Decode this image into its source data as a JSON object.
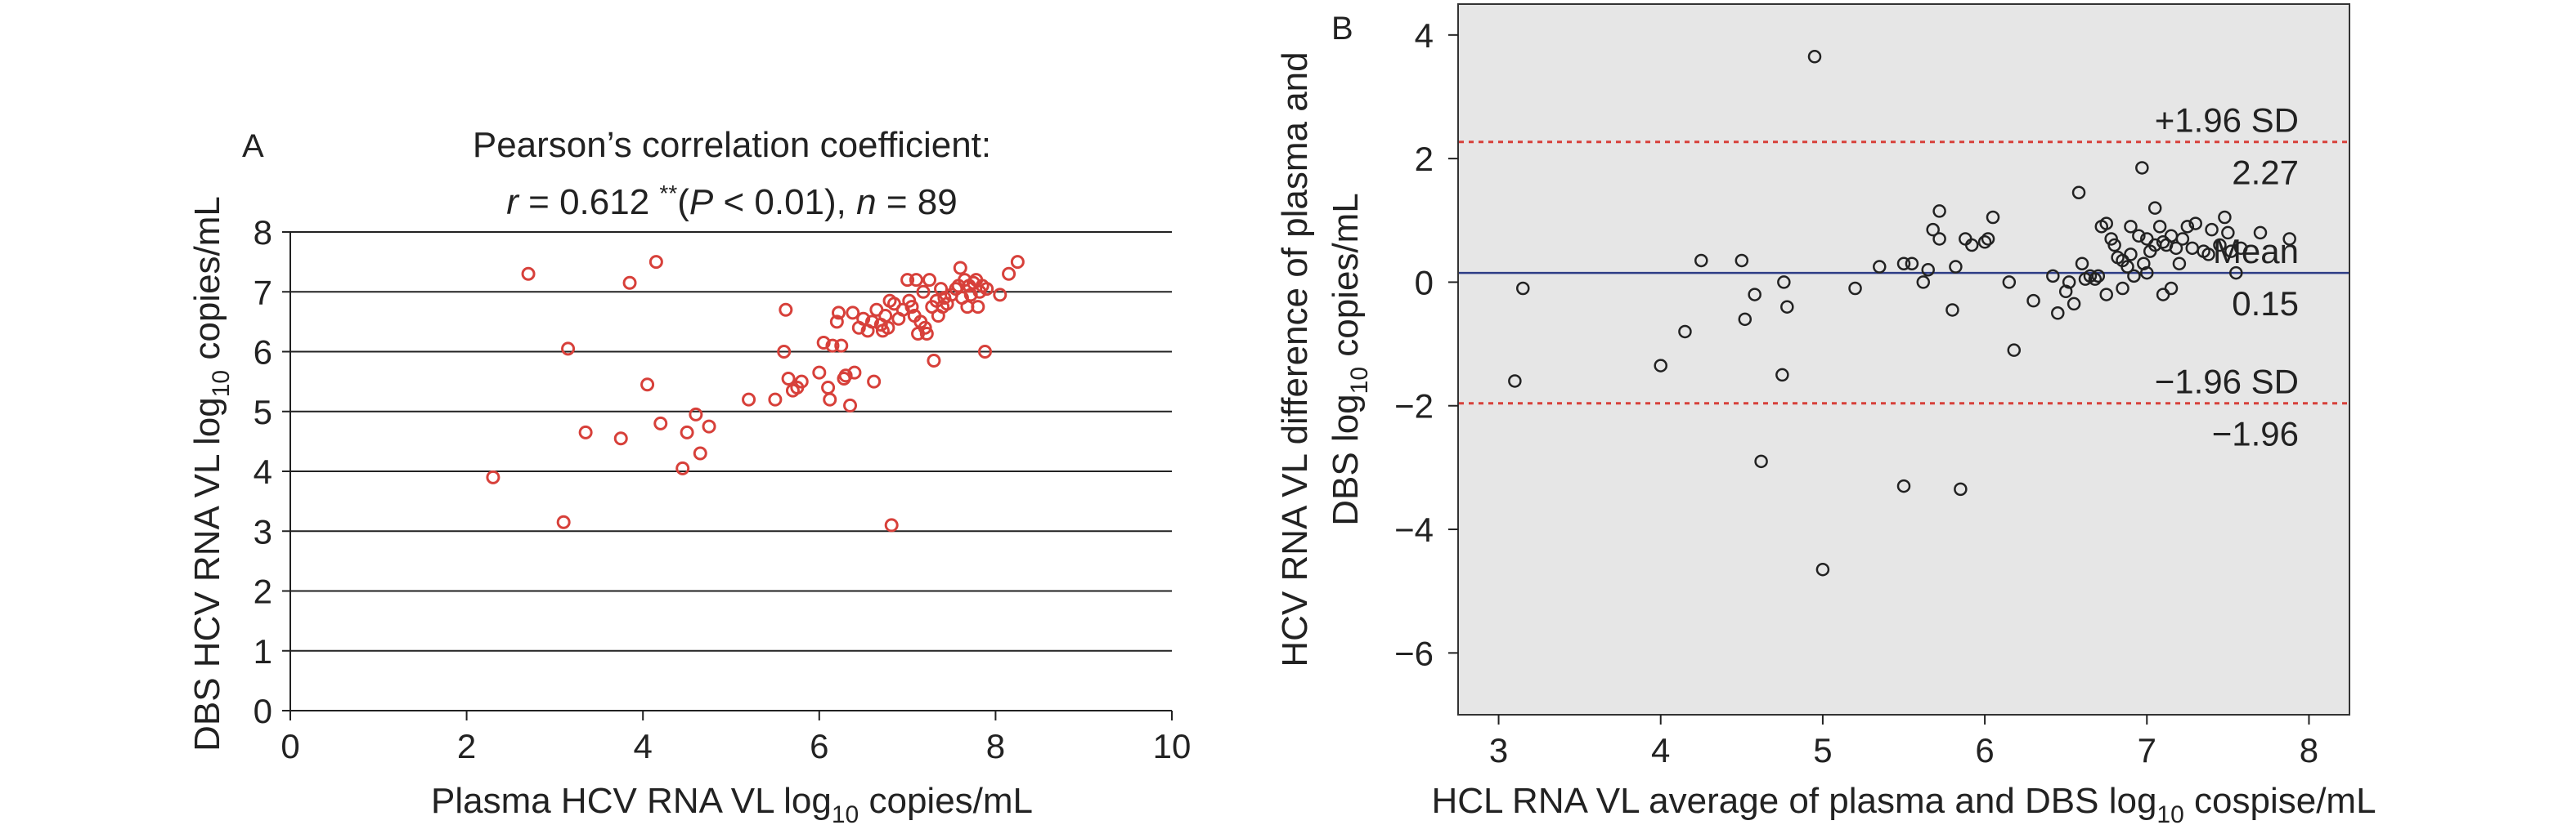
{
  "chart_data": [
    {
      "panel": "A",
      "type": "scatter",
      "title_line1": "Pearson’s correlation coefficient:",
      "title_line2": {
        "r_symbol": "r",
        "r_value": " = 0.612 ",
        "stars": "**",
        "p_open": "(",
        "p_symbol": "P",
        "p_rest": " < 0.01), ",
        "n_symbol": "n",
        "n_value": " = 89"
      },
      "xlabel": {
        "main": "Plasma HCV RNA VL log",
        "sub": "10",
        "tail": " copies/mL"
      },
      "ylabel": {
        "main": "DBS HCV RNA VL log",
        "sub": "10",
        "tail": " copies/mL"
      },
      "xlim": [
        0,
        10
      ],
      "ylim": [
        0,
        8
      ],
      "xticks": [
        "0",
        "2",
        "4",
        "6",
        "8",
        "10"
      ],
      "yticks": [
        "0",
        "1",
        "2",
        "3",
        "4",
        "5",
        "6",
        "7",
        "8"
      ],
      "grid": "horizontal",
      "point_color": "#d7403a",
      "points": [
        [
          2.3,
          3.9
        ],
        [
          2.7,
          7.3
        ],
        [
          3.1,
          3.15
        ],
        [
          3.15,
          6.05
        ],
        [
          3.35,
          4.65
        ],
        [
          3.75,
          4.55
        ],
        [
          3.85,
          7.15
        ],
        [
          4.05,
          5.45
        ],
        [
          4.15,
          7.5
        ],
        [
          4.2,
          4.8
        ],
        [
          4.45,
          4.05
        ],
        [
          4.5,
          4.65
        ],
        [
          4.6,
          4.95
        ],
        [
          4.65,
          4.3
        ],
        [
          4.75,
          4.75
        ],
        [
          5.2,
          5.2
        ],
        [
          5.5,
          5.2
        ],
        [
          5.6,
          6.0
        ],
        [
          5.62,
          6.7
        ],
        [
          5.65,
          5.55
        ],
        [
          5.7,
          5.35
        ],
        [
          5.75,
          5.4
        ],
        [
          5.8,
          5.5
        ],
        [
          6.0,
          5.65
        ],
        [
          6.05,
          6.15
        ],
        [
          6.1,
          5.4
        ],
        [
          6.12,
          5.2
        ],
        [
          6.15,
          6.1
        ],
        [
          6.2,
          6.5
        ],
        [
          6.22,
          6.65
        ],
        [
          6.25,
          6.1
        ],
        [
          6.28,
          5.55
        ],
        [
          6.3,
          5.6
        ],
        [
          6.35,
          5.1
        ],
        [
          6.38,
          6.65
        ],
        [
          6.4,
          5.65
        ],
        [
          6.45,
          6.4
        ],
        [
          6.5,
          6.55
        ],
        [
          6.55,
          6.35
        ],
        [
          6.6,
          6.5
        ],
        [
          6.62,
          5.5
        ],
        [
          6.65,
          6.7
        ],
        [
          6.7,
          6.45
        ],
        [
          6.75,
          6.6
        ],
        [
          6.78,
          6.4
        ],
        [
          6.8,
          6.85
        ],
        [
          6.82,
          3.1
        ],
        [
          6.85,
          6.8
        ],
        [
          6.9,
          6.55
        ],
        [
          6.95,
          6.7
        ],
        [
          7.0,
          7.2
        ],
        [
          7.02,
          6.85
        ],
        [
          7.05,
          6.75
        ],
        [
          7.08,
          6.6
        ],
        [
          7.1,
          7.2
        ],
        [
          7.12,
          6.3
        ],
        [
          7.15,
          6.5
        ],
        [
          7.18,
          7.0
        ],
        [
          7.2,
          6.4
        ],
        [
          7.22,
          6.3
        ],
        [
          7.25,
          7.2
        ],
        [
          7.28,
          6.75
        ],
        [
          7.3,
          5.85
        ],
        [
          7.33,
          6.85
        ],
        [
          7.35,
          6.6
        ],
        [
          7.38,
          7.05
        ],
        [
          7.4,
          6.75
        ],
        [
          7.42,
          6.9
        ],
        [
          7.45,
          6.8
        ],
        [
          7.5,
          6.95
        ],
        [
          7.55,
          7.05
        ],
        [
          7.58,
          7.1
        ],
        [
          7.6,
          7.4
        ],
        [
          7.62,
          6.9
        ],
        [
          7.65,
          7.2
        ],
        [
          7.68,
          6.75
        ],
        [
          7.7,
          7.1
        ],
        [
          7.72,
          6.95
        ],
        [
          7.75,
          7.15
        ],
        [
          7.78,
          7.2
        ],
        [
          7.8,
          6.75
        ],
        [
          7.82,
          7.0
        ],
        [
          7.85,
          7.1
        ],
        [
          7.88,
          6.0
        ],
        [
          7.9,
          7.05
        ],
        [
          8.05,
          6.95
        ],
        [
          8.15,
          7.3
        ],
        [
          8.25,
          7.5
        ],
        [
          6.72,
          6.35
        ]
      ]
    },
    {
      "panel": "B",
      "type": "scatter",
      "subtype": "bland-altman",
      "background": "#e6e6e6",
      "ylabel_line1": "HCV RNA VL difference of plasma and",
      "ylabel_line2": {
        "main": "DBS log",
        "sub": "10",
        "tail": " copies/mL"
      },
      "xlabel": {
        "main": "HCL RNA VL average of plasma and DBS log",
        "sub": "10",
        "tail": " cospise/mL"
      },
      "xlim": [
        2.75,
        8.25
      ],
      "ylim": [
        -7,
        4.5
      ],
      "xticks": [
        "3",
        "4",
        "5",
        "6",
        "7",
        "8"
      ],
      "yticks": [
        "4",
        "2",
        "0",
        "−2",
        "−4",
        "−6"
      ],
      "lines": {
        "upper": {
          "y": 2.27,
          "label": "+1.96 SD",
          "value_label": "2.27",
          "color": "#d7403a",
          "style": "dotted"
        },
        "mean": {
          "y": 0.15,
          "label": "Mean",
          "value_label": "0.15",
          "color": "#2e3d86",
          "style": "solid"
        },
        "lower": {
          "y": -1.96,
          "label": "−1.96 SD",
          "value_label": "−1.96",
          "color": "#d7403a",
          "style": "dotted"
        }
      },
      "points": [
        [
          3.1,
          -1.6
        ],
        [
          3.15,
          -0.1
        ],
        [
          4.0,
          -1.35
        ],
        [
          4.15,
          -0.8
        ],
        [
          4.25,
          0.35
        ],
        [
          4.5,
          0.35
        ],
        [
          4.52,
          -0.6
        ],
        [
          4.58,
          -0.2
        ],
        [
          4.62,
          -2.9
        ],
        [
          4.75,
          -1.5
        ],
        [
          4.76,
          0.0
        ],
        [
          4.78,
          -0.4
        ],
        [
          4.95,
          3.65
        ],
        [
          5.0,
          -4.65
        ],
        [
          5.2,
          -0.1
        ],
        [
          5.35,
          0.25
        ],
        [
          5.5,
          0.3
        ],
        [
          5.5,
          -3.3
        ],
        [
          5.55,
          0.3
        ],
        [
          5.62,
          0.0
        ],
        [
          5.65,
          0.2
        ],
        [
          5.68,
          0.85
        ],
        [
          5.72,
          0.7
        ],
        [
          5.72,
          1.15
        ],
        [
          5.8,
          -0.45
        ],
        [
          5.82,
          0.25
        ],
        [
          5.85,
          -3.35
        ],
        [
          5.88,
          0.7
        ],
        [
          5.92,
          0.6
        ],
        [
          6.0,
          0.65
        ],
        [
          6.02,
          0.7
        ],
        [
          6.05,
          1.05
        ],
        [
          6.15,
          0.0
        ],
        [
          6.18,
          -1.1
        ],
        [
          6.3,
          -0.3
        ],
        [
          6.42,
          0.1
        ],
        [
          6.45,
          -0.5
        ],
        [
          6.5,
          -0.15
        ],
        [
          6.52,
          0.0
        ],
        [
          6.55,
          -0.35
        ],
        [
          6.58,
          1.45
        ],
        [
          6.6,
          0.3
        ],
        [
          6.62,
          0.05
        ],
        [
          6.65,
          0.1
        ],
        [
          6.68,
          0.05
        ],
        [
          6.7,
          0.1
        ],
        [
          6.72,
          0.9
        ],
        [
          6.75,
          0.95
        ],
        [
          6.75,
          -0.2
        ],
        [
          6.78,
          0.7
        ],
        [
          6.82,
          0.4
        ],
        [
          6.85,
          0.35
        ],
        [
          6.85,
          -0.1
        ],
        [
          6.88,
          0.25
        ],
        [
          6.9,
          0.45
        ],
        [
          6.92,
          0.1
        ],
        [
          6.95,
          0.75
        ],
        [
          6.97,
          1.85
        ],
        [
          7.0,
          0.15
        ],
        [
          7.0,
          0.7
        ],
        [
          7.02,
          0.5
        ],
        [
          7.05,
          1.2
        ],
        [
          7.05,
          0.6
        ],
        [
          7.08,
          0.9
        ],
        [
          7.1,
          -0.2
        ],
        [
          7.12,
          0.6
        ],
        [
          7.15,
          -0.1
        ],
        [
          7.18,
          0.55
        ],
        [
          7.2,
          0.3
        ],
        [
          7.22,
          0.7
        ],
        [
          7.25,
          0.9
        ],
        [
          7.28,
          0.55
        ],
        [
          7.3,
          0.95
        ],
        [
          7.38,
          0.45
        ],
        [
          7.45,
          0.6
        ],
        [
          7.48,
          1.05
        ],
        [
          7.5,
          0.8
        ],
        [
          7.52,
          0.5
        ],
        [
          7.55,
          0.15
        ],
        [
          7.58,
          0.55
        ],
        [
          7.7,
          0.8
        ],
        [
          7.88,
          0.7
        ],
        [
          7.1,
          0.65
        ],
        [
          6.9,
          0.9
        ],
        [
          7.35,
          0.5
        ],
        [
          6.98,
          0.3
        ],
        [
          7.4,
          0.85
        ],
        [
          6.8,
          0.6
        ],
        [
          7.15,
          0.75
        ]
      ]
    }
  ]
}
